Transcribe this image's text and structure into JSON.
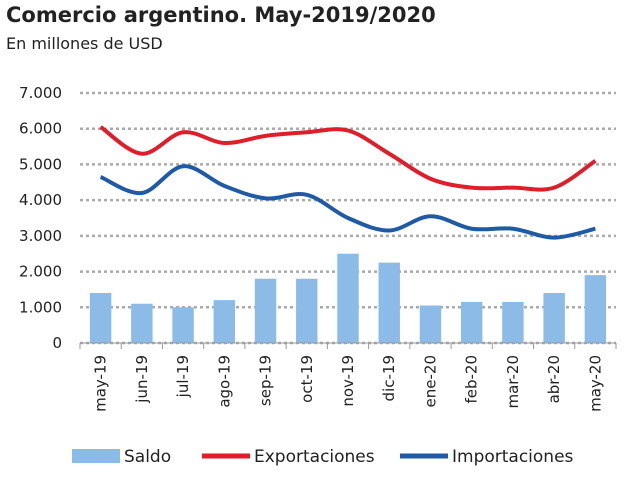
{
  "chart_data": {
    "type": "bar_line",
    "title": "Comercio argentino. May-2019/2020",
    "subtitle": "En millones de USD",
    "categories": [
      "may-19",
      "jun-19",
      "jul-19",
      "ago-19",
      "sep-19",
      "oct-19",
      "nov-19",
      "dic-19",
      "ene-20",
      "feb-20",
      "mar-20",
      "abr-20",
      "may-20"
    ],
    "series": [
      {
        "name": "Saldo",
        "type": "bar",
        "color": "#8bbbe6",
        "values": [
          1400,
          1100,
          1000,
          1200,
          1800,
          1800,
          2500,
          2250,
          1050,
          1150,
          1150,
          1400,
          1900
        ]
      },
      {
        "name": "Exportaciones",
        "type": "line",
        "color": "#e01e2b",
        "values": [
          6050,
          5300,
          5900,
          5600,
          5800,
          5900,
          5950,
          5300,
          4600,
          4350,
          4350,
          4350,
          5100
        ]
      },
      {
        "name": "Importaciones",
        "type": "line",
        "color": "#1f5aa6",
        "values": [
          4650,
          4200,
          4950,
          4400,
          4050,
          4150,
          3500,
          3150,
          3550,
          3200,
          3200,
          2950,
          3200
        ]
      }
    ],
    "ylim": [
      0,
      7000
    ],
    "yticks": [
      0,
      {
        "value": 1000,
        "label": "1.000"
      },
      {
        "value": 2000,
        "label": "2.000"
      },
      {
        "value": 3000,
        "label": "3.000"
      },
      {
        "value": 4000,
        "label": "4.000"
      },
      {
        "value": 5000,
        "label": "5.000"
      },
      {
        "value": 6000,
        "label": "6.000"
      },
      {
        "value": 7000,
        "label": "7.000"
      }
    ],
    "grid": true,
    "legend": "bottom"
  }
}
